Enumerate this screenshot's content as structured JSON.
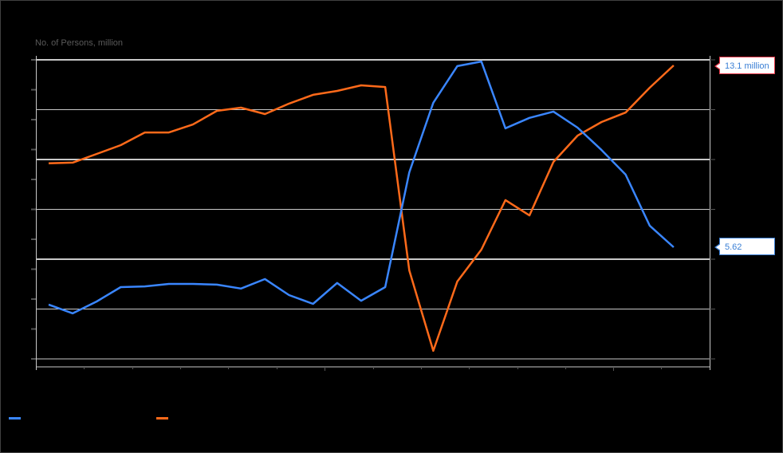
{
  "chart_data": {
    "type": "line",
    "title": "",
    "ylabel": "No. of Persons, million",
    "xlabel": "",
    "ylim": [
      1.0,
      13.3
    ],
    "grid": true,
    "legend_position": "bottom",
    "x": [
      1,
      2,
      3,
      4,
      5,
      6,
      7,
      8,
      9,
      10,
      11,
      12,
      13,
      14,
      15,
      16,
      17,
      18,
      19,
      20,
      21,
      22,
      23,
      24,
      25,
      26,
      27
    ],
    "series": [
      {
        "name": "",
        "color": "#3a86ff",
        "values": [
          3.26,
          2.9,
          3.39,
          3.98,
          4.01,
          4.11,
          4.11,
          4.08,
          3.92,
          4.31,
          3.65,
          3.29,
          4.15,
          3.42,
          3.98,
          8.7,
          11.56,
          13.07,
          13.26,
          10.51,
          10.94,
          11.2,
          10.54,
          9.62,
          8.61,
          6.51,
          5.62
        ],
        "end_label": "5.62"
      },
      {
        "name": "",
        "color": "#ff6a1a",
        "values": [
          9.07,
          9.1,
          9.46,
          9.82,
          10.34,
          10.34,
          10.67,
          11.23,
          11.36,
          11.1,
          11.53,
          11.89,
          12.05,
          12.28,
          12.21,
          4.67,
          1.36,
          4.21,
          5.52,
          7.56,
          6.93,
          9.13,
          10.21,
          10.77,
          11.16,
          12.18,
          13.1
        ],
        "end_label": "13.1 million"
      }
    ],
    "annotations": [
      "13.1 million",
      "5.62"
    ]
  },
  "axis": {
    "ylabel": "No. of Persons, million"
  },
  "legend": {
    "items": [
      {
        "label": "",
        "color": "#3a86ff"
      },
      {
        "label": "",
        "color": "#ff6a1a"
      }
    ]
  },
  "callouts": {
    "orange_end": "13.1 million",
    "blue_end": "5.62"
  },
  "colors": {
    "blue": "#3a86ff",
    "orange": "#ff6a1a",
    "grid": "#c8c8c8",
    "callout_orange_border": "#e8394a",
    "callout_blue_border": "#3a7fd5"
  }
}
